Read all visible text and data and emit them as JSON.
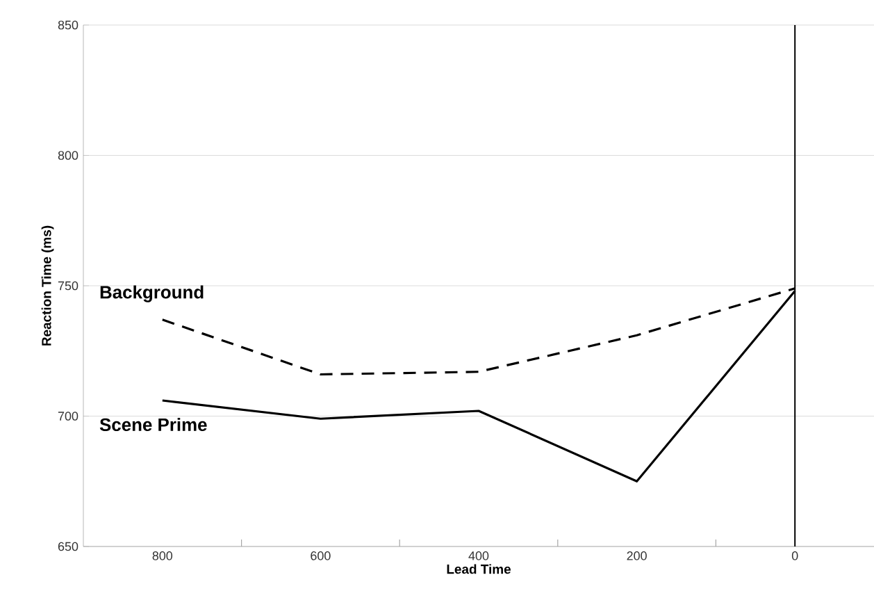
{
  "chart_data": {
    "type": "line",
    "xlabel": "Lead Time",
    "ylabel": "Reaction Time (ms)",
    "x": [
      800,
      600,
      400,
      200,
      0
    ],
    "series": [
      {
        "name": "Background",
        "color": "#000000",
        "line_style": "dashed",
        "values": [
          737,
          716,
          717,
          731,
          749
        ]
      },
      {
        "name": "Scene Prime",
        "color": "#000000",
        "line_style": "solid",
        "values": [
          706,
          699,
          702,
          675,
          748
        ]
      }
    ],
    "xlim": [
      900,
      -100
    ],
    "xticks": [
      800,
      {
        "value": 700,
        "label": null
      },
      600,
      {
        "value": 500,
        "label": null
      },
      400,
      {
        "value": 300,
        "label": null
      },
      200,
      {
        "value": 100,
        "label": null
      },
      0
    ],
    "ylim": [
      650,
      850
    ],
    "yticks": [
      650,
      700,
      750,
      800,
      850
    ],
    "grid": "y",
    "legend": false,
    "marker": "none",
    "ref_lines": [
      {
        "axis": "x",
        "value": 0,
        "color": "#000000"
      }
    ]
  }
}
